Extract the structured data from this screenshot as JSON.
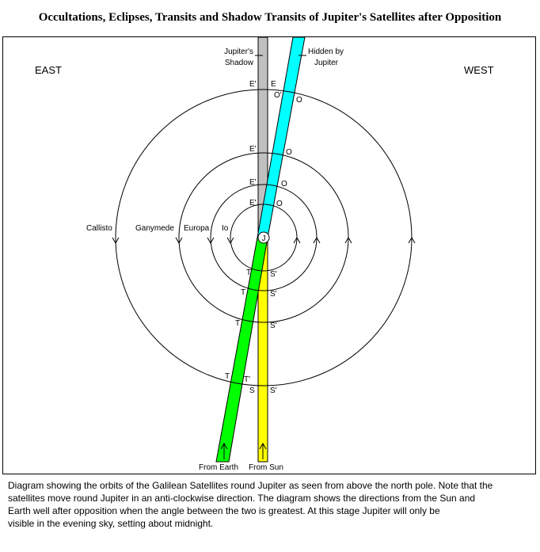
{
  "title": "Occultations, Eclipses, Transits and Shadow Transits of Jupiter's Satellites after Opposition",
  "directions": {
    "east": "EAST",
    "west": "WEST"
  },
  "beams": {
    "shadow_label": [
      "Jupiter's",
      "Shadow"
    ],
    "hidden_label": [
      "Hidden by",
      "Jupiter"
    ],
    "from_earth": "From Earth",
    "from_sun": "From Sun"
  },
  "jupiter_label": "J",
  "satellites": [
    "Io",
    "Europa",
    "Ganymede",
    "Callisto"
  ],
  "event_labels": {
    "eclipse_start": "E'",
    "eclipse_end": "E",
    "occultation_start": "O'",
    "occultation_end": "O",
    "transit_start": "T",
    "transit_end": "T'",
    "shadow_start": "S",
    "shadow_end": "S'"
  },
  "colors": {
    "shadow": "#c0c0c0",
    "hidden": "#00ffff",
    "earth": "#00ff00",
    "sun": "#ffff00",
    "line": "#000000"
  },
  "caption": [
    "Diagram showing the orbits of the Galilean Satellites round Jupiter as seen from above the north pole.  Note that the",
    "satellites move round Jupiter in an anti-clockwise direction.  The diagram shows the directions from the Sun and",
    "Earth well after opposition when the angle between the two is greatest.  At this stage Jupiter will only be",
    "visible in the  evening  sky,  setting about  midnight."
  ]
}
